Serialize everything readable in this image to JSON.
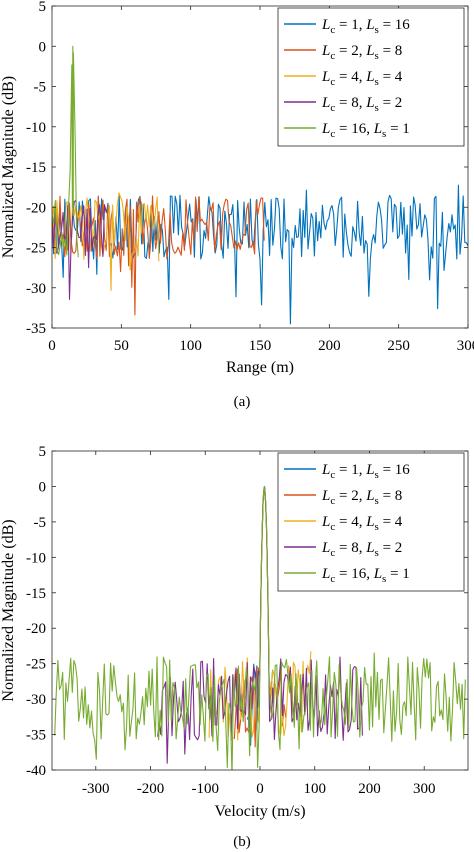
{
  "chart_data": [
    {
      "type": "line",
      "caption": "(a)",
      "xlabel": "Range (m)",
      "ylabel": "Normalized Magnitude (dB)",
      "xlim": [
        0,
        300
      ],
      "ylim": [
        -35,
        5
      ],
      "xticks": [
        0,
        50,
        100,
        150,
        200,
        250,
        300
      ],
      "xticklabels": [
        "0",
        "50",
        "100",
        "150",
        "200",
        "250",
        "300"
      ],
      "yticks": [
        5,
        0,
        -5,
        -10,
        -15,
        -20,
        -25,
        -30,
        -35
      ],
      "yticklabels": [
        "5",
        "0",
        "-5",
        "-10",
        "-15",
        "-20",
        "-25",
        "-30",
        "-35"
      ],
      "legend_position": "top-right",
      "grid": false,
      "series": [
        {
          "label_main": "L",
          "label_sub1": "c",
          "label_mid": " = 1,  ",
          "label_sub2": "s",
          "label_end": " = 16",
          "color": "#0072BD",
          "x_range": [
            0,
            300
          ],
          "noise_floor": -22.5,
          "noise_spread": 4,
          "peak": null
        },
        {
          "label_main": "L",
          "label_sub1": "c",
          "label_mid": " = 2,  ",
          "label_sub2": "s",
          "label_end": " = 8",
          "color": "#D95319",
          "x_range": [
            0,
            153
          ],
          "noise_floor": -22.5,
          "noise_spread": 4,
          "peak": null
        },
        {
          "label_main": "L",
          "label_sub1": "c",
          "label_mid": " = 4,  ",
          "label_sub2": "s",
          "label_end": " = 4",
          "color": "#EDB120",
          "x_range": [
            0,
            77
          ],
          "noise_floor": -22.5,
          "noise_spread": 4,
          "peak": null
        },
        {
          "label_main": "L",
          "label_sub1": "c",
          "label_mid": " = 8,  ",
          "label_sub2": "s",
          "label_end": " = 2",
          "color": "#7E2F8E",
          "x_range": [
            0,
            39
          ],
          "noise_floor": -22.5,
          "noise_spread": 4,
          "peak": null
        },
        {
          "label_main": "L",
          "label_sub1": "c",
          "label_mid": " = 16,  ",
          "label_sub2": "s",
          "label_end": " = 1",
          "color": "#77AC30",
          "x_range": [
            0,
            19
          ],
          "noise_floor": -22.5,
          "noise_spread": 4,
          "peak": [
            15,
            0
          ]
        }
      ]
    },
    {
      "type": "line",
      "caption": "(b)",
      "xlabel": "Velocity (m/s)",
      "ylabel": "Normalized Magnitude (dB)",
      "xlim": [
        -380,
        380
      ],
      "ylim": [
        -40,
        5
      ],
      "xticks": [
        -300,
        -200,
        -100,
        0,
        100,
        200,
        300
      ],
      "xticklabels": [
        "-300",
        "-200",
        "-100",
        "0",
        "100",
        "200",
        "300"
      ],
      "yticks": [
        5,
        0,
        -5,
        -10,
        -15,
        -20,
        -25,
        -30,
        -35,
        -40
      ],
      "yticklabels": [
        "5",
        "0",
        "-5",
        "-10",
        "-15",
        "-20",
        "-25",
        "-30",
        "-35",
        "-40"
      ],
      "legend_position": "top-right",
      "grid": false,
      "series": [
        {
          "label_main": "L",
          "label_sub1": "c",
          "label_mid": " = 1,  ",
          "label_sub2": "s",
          "label_end": " = 16",
          "color": "#0072BD",
          "x_range": [
            -23,
            23
          ],
          "noise_floor": -29,
          "noise_spread": 4,
          "peak": [
            8,
            0
          ],
          "peak_width": 4
        },
        {
          "label_main": "L",
          "label_sub1": "c",
          "label_mid": " = 2,  ",
          "label_sub2": "s",
          "label_end": " = 8",
          "color": "#D95319",
          "x_range": [
            -47,
            47
          ],
          "noise_floor": -30,
          "noise_spread": 5,
          "peak": [
            8,
            0
          ],
          "peak_width": 4
        },
        {
          "label_main": "L",
          "label_sub1": "c",
          "label_mid": " = 4,  ",
          "label_sub2": "s",
          "label_end": " = 4",
          "color": "#EDB120",
          "x_range": [
            -93,
            93
          ],
          "noise_floor": -30,
          "noise_spread": 6,
          "peak": [
            8,
            0
          ],
          "peak_width": 4
        },
        {
          "label_main": "L",
          "label_sub1": "c",
          "label_mid": " = 8,  ",
          "label_sub2": "s",
          "label_end": " = 2",
          "color": "#7E2F8E",
          "x_range": [
            -187,
            187
          ],
          "noise_floor": -30,
          "noise_spread": 6,
          "peak": [
            8,
            0
          ],
          "peak_width": 4
        },
        {
          "label_main": "L",
          "label_sub1": "c",
          "label_mid": " = 16,  ",
          "label_sub2": "s",
          "label_end": " = 1",
          "color": "#77AC30",
          "x_range": [
            -375,
            375
          ],
          "noise_floor": -30,
          "noise_spread": 6,
          "peak": [
            8,
            0
          ],
          "peak_width": 4
        }
      ]
    }
  ]
}
